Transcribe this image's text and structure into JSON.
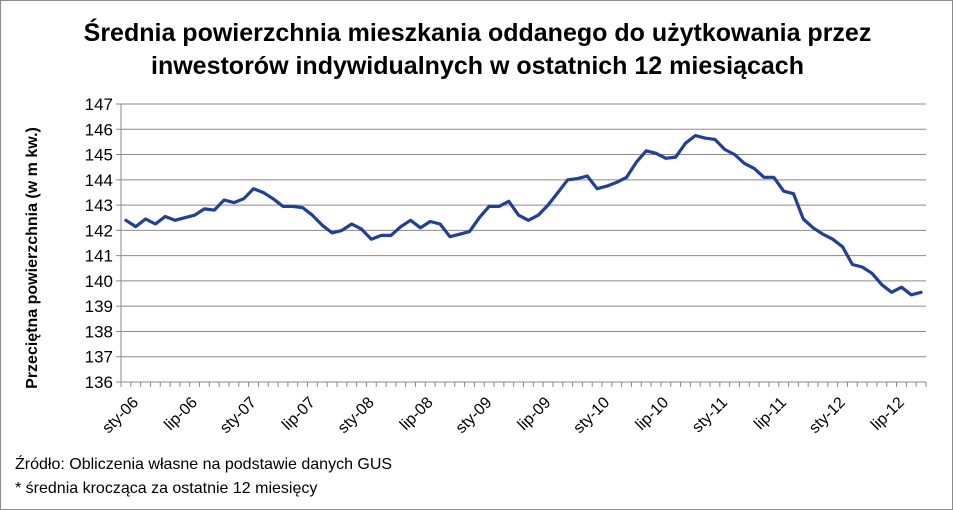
{
  "chart_data": {
    "type": "line",
    "title_line1": "Średnia powierzchnia mieszkania oddanego do użytkowania przez",
    "title_line2": "inwestorów indywidualnych w ostatnich 12 miesiącach",
    "xlabel": "",
    "ylabel": "Przeciętna powierzchnia (w m kw.)",
    "ylim": [
      136,
      147
    ],
    "yticks": [
      136,
      137,
      138,
      139,
      140,
      141,
      142,
      143,
      144,
      145,
      146,
      147
    ],
    "grid": "horizontal",
    "legend": "none",
    "series_color": "#1f3f9f",
    "xtick_labels": [
      "sty-06",
      "lip-06",
      "sty-07",
      "lip-07",
      "sty-08",
      "lip-08",
      "sty-09",
      "lip-09",
      "sty-10",
      "lip-10",
      "sty-11",
      "lip-11",
      "sty-12",
      "lip-12"
    ],
    "xtick_step_months": 6,
    "series": [
      {
        "values": [
          142.4,
          142.15,
          142.45,
          142.25,
          142.55,
          142.4,
          142.5,
          142.6,
          142.85,
          142.8,
          143.2,
          143.1,
          143.25,
          143.65,
          143.5,
          143.25,
          142.95,
          142.95,
          142.9,
          142.6,
          142.2,
          141.9,
          142.0,
          142.25,
          142.05,
          141.65,
          141.8,
          141.8,
          142.15,
          142.4,
          142.1,
          142.35,
          142.25,
          141.75,
          141.85,
          141.95,
          142.5,
          142.95,
          142.95,
          143.15,
          142.6,
          142.4,
          142.6,
          143.0,
          143.5,
          144.0,
          144.05,
          144.15,
          143.65,
          143.75,
          143.9,
          144.1,
          144.7,
          145.15,
          145.05,
          144.85,
          144.9,
          145.45,
          145.75,
          145.65,
          145.6,
          145.2,
          145.0,
          144.65,
          144.45,
          144.1,
          144.1,
          143.55,
          143.45,
          142.45,
          142.1,
          141.85,
          141.65,
          141.35,
          140.65,
          140.55,
          140.3,
          139.85,
          139.55,
          139.75,
          139.45,
          139.55
        ]
      }
    ]
  },
  "footnotes": {
    "source": "Źródło: Obliczenia własne na podstawie danych GUS",
    "note": "* średnia krocząca za ostatnie 12 miesięcy"
  }
}
